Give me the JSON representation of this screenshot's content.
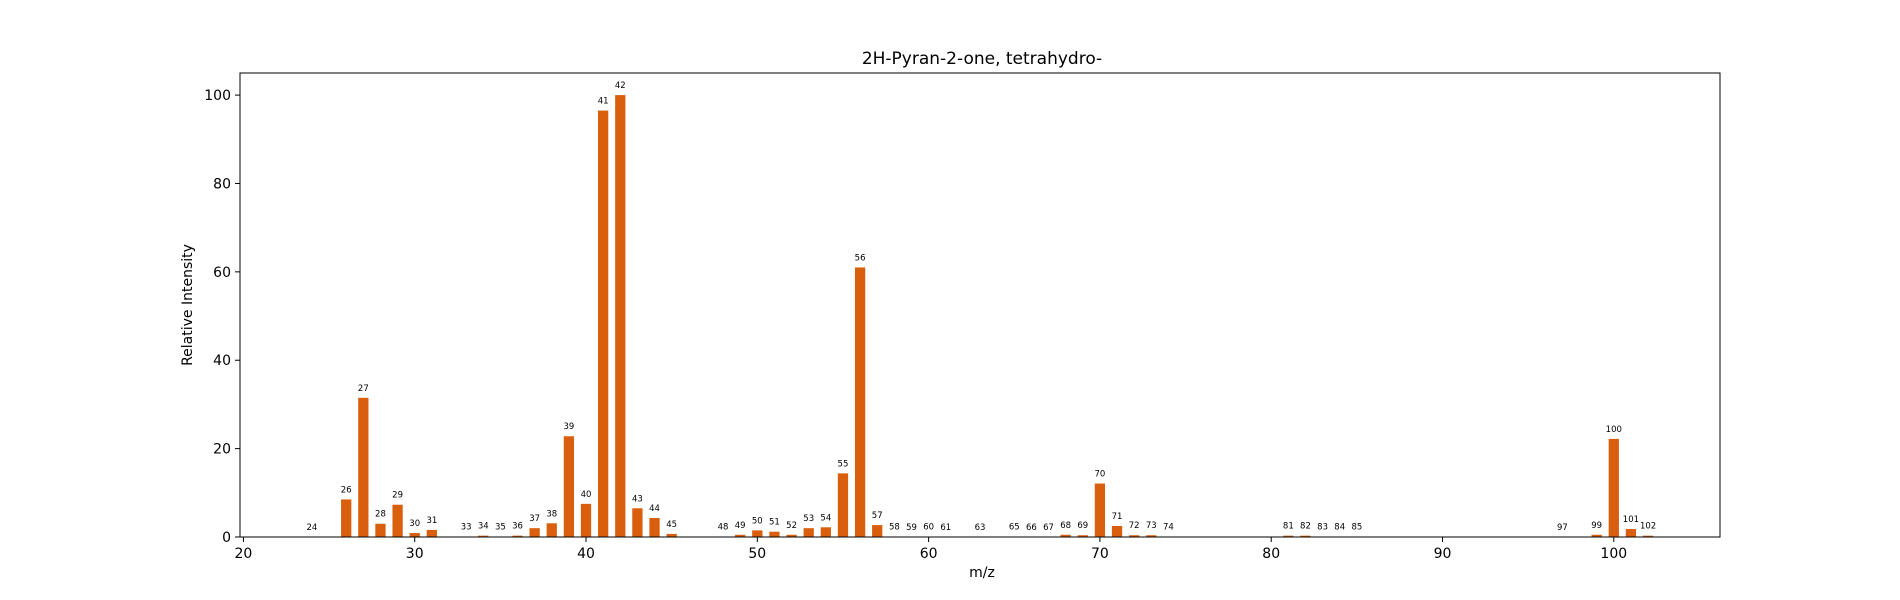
{
  "chart_data": {
    "type": "bar",
    "title": "2H-Pyran-2-one, tetrahydro-",
    "xlabel": "m/z",
    "ylabel": "Relative Intensity",
    "xlim": [
      19.8,
      106.2
    ],
    "ylim": [
      0,
      105
    ],
    "xticks": [
      20,
      30,
      40,
      50,
      60,
      70,
      80,
      90,
      100
    ],
    "yticks": [
      0,
      20,
      40,
      60,
      80,
      100
    ],
    "grid": false,
    "bar_color": "#d95f0e",
    "x": [
      24,
      26,
      27,
      28,
      29,
      30,
      31,
      33,
      34,
      35,
      36,
      37,
      38,
      39,
      40,
      41,
      42,
      43,
      44,
      45,
      48,
      49,
      50,
      51,
      52,
      53,
      54,
      55,
      56,
      57,
      58,
      59,
      60,
      61,
      63,
      65,
      66,
      67,
      68,
      69,
      70,
      71,
      72,
      73,
      74,
      81,
      82,
      83,
      84,
      85,
      97,
      99,
      100,
      101,
      102
    ],
    "values": [
      0.05,
      8.5,
      31.5,
      3.0,
      7.3,
      0.9,
      1.6,
      0.1,
      0.3,
      0.1,
      0.3,
      2.0,
      3.1,
      22.8,
      7.5,
      96.5,
      100.0,
      6.5,
      4.3,
      0.7,
      0.1,
      0.5,
      1.5,
      1.2,
      0.5,
      2.0,
      2.2,
      14.4,
      61.0,
      2.7,
      0.1,
      0.05,
      0.1,
      0.05,
      0.05,
      0.1,
      0.05,
      0.05,
      0.5,
      0.4,
      12.1,
      2.5,
      0.4,
      0.4,
      0.1,
      0.3,
      0.3,
      0.1,
      0.1,
      0.1,
      0.05,
      0.5,
      22.2,
      1.8,
      0.3
    ],
    "labels": [
      "24",
      "26",
      "27",
      "28",
      "29",
      "30",
      "31",
      "33",
      "34",
      "35",
      "36",
      "37",
      "38",
      "39",
      "40",
      "41",
      "42",
      "43",
      "44",
      "45",
      "48",
      "49",
      "50",
      "51",
      "52",
      "53",
      "54",
      "55",
      "56",
      "57",
      "58",
      "59",
      "60",
      "61",
      "63",
      "65",
      "66",
      "67",
      "68",
      "69",
      "70",
      "71",
      "72",
      "73",
      "74",
      "81",
      "82",
      "83",
      "84",
      "85",
      "97",
      "99",
      "100",
      "101",
      "102"
    ]
  }
}
